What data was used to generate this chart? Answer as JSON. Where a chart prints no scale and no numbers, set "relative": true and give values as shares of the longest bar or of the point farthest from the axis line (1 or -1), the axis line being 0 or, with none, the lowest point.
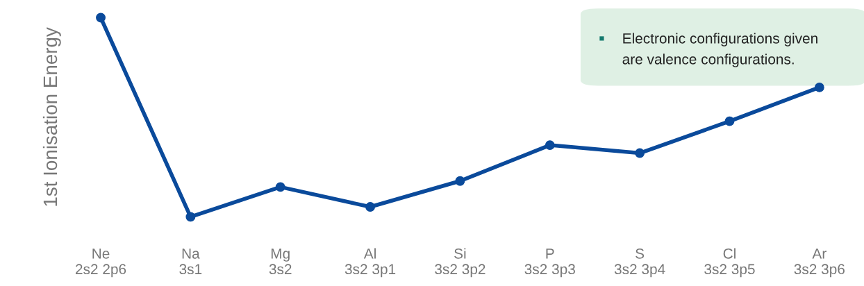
{
  "chart_data": {
    "type": "line",
    "ylabel": "1st Ionisation Energy",
    "relative": true,
    "categories": [
      "Ne\n2s2 2p6",
      "Na\n3s1",
      "Mg\n3s2",
      "Al\n3s2 3p1",
      "Si\n3s2 3p2",
      "P\n3s2 3p3",
      "S\n3s2 3p4",
      "Cl\n3s2 3p5",
      "Ar\n3s2 3p6"
    ],
    "series": [
      {
        "color": "#0a4a9b",
        "values": [
          1,
          0,
          0.15,
          0.05,
          0.18,
          0.36,
          0.32,
          0.48,
          0.65
        ]
      }
    ],
    "marker": "circle",
    "line_style": "solid",
    "grid": false,
    "legend": false,
    "annotations": [
      "Electronic configurations given\nare valence configurations."
    ]
  }
}
